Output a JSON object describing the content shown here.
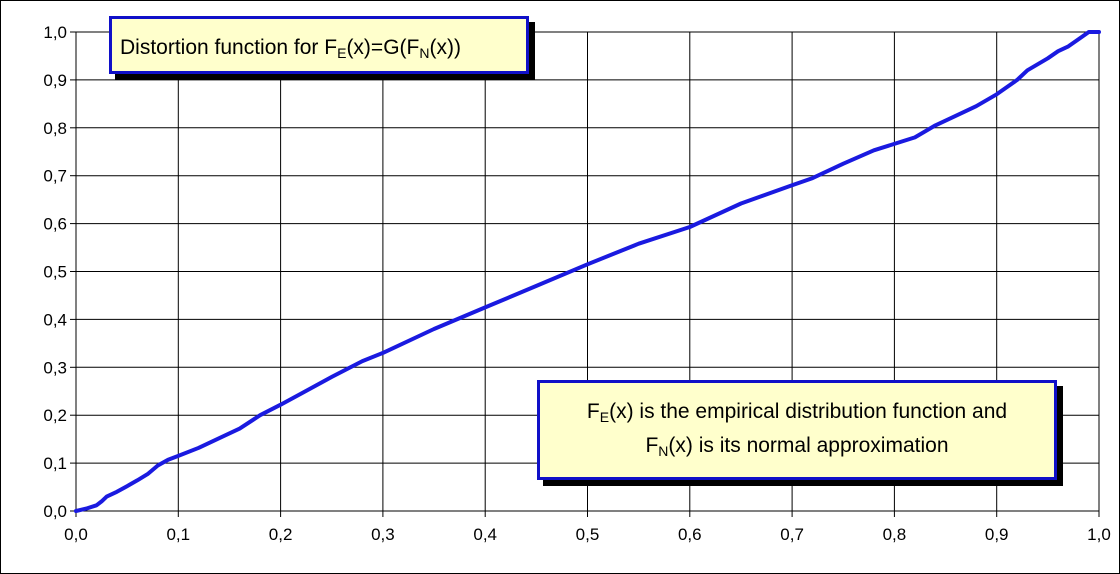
{
  "chart_data": {
    "type": "line",
    "title_parts": {
      "a": "Distortion function for F",
      "b": "E",
      "c": "(x)=G(F",
      "d": "N",
      "e": "(x))"
    },
    "annotation": {
      "line1": {
        "a": "F",
        "b": "E",
        "c": "(x) is the empirical distribution function and"
      },
      "line2": {
        "a": "F",
        "b": "N",
        "c": "(x) is its normal approximation"
      }
    },
    "xlim": [
      0,
      1
    ],
    "ylim": [
      0,
      1
    ],
    "x_ticks": [
      "0,0",
      "0,1",
      "0,2",
      "0,3",
      "0,4",
      "0,5",
      "0,6",
      "0,7",
      "0,8",
      "0,9",
      "1,0"
    ],
    "y_ticks": [
      "0,0",
      "0,1",
      "0,2",
      "0,3",
      "0,4",
      "0,5",
      "0,6",
      "0,7",
      "0,8",
      "0,9",
      "1,0"
    ],
    "grid": true,
    "series": [
      {
        "color": "#1a1ae0",
        "points": [
          [
            0.0,
            0.0
          ],
          [
            0.01,
            0.005
          ],
          [
            0.02,
            0.012
          ],
          [
            0.025,
            0.02
          ],
          [
            0.03,
            0.03
          ],
          [
            0.04,
            0.04
          ],
          [
            0.05,
            0.052
          ],
          [
            0.06,
            0.064
          ],
          [
            0.07,
            0.077
          ],
          [
            0.08,
            0.095
          ],
          [
            0.09,
            0.107
          ],
          [
            0.1,
            0.115
          ],
          [
            0.12,
            0.132
          ],
          [
            0.14,
            0.152
          ],
          [
            0.16,
            0.172
          ],
          [
            0.18,
            0.2
          ],
          [
            0.2,
            0.222
          ],
          [
            0.22,
            0.245
          ],
          [
            0.25,
            0.28
          ],
          [
            0.28,
            0.313
          ],
          [
            0.3,
            0.33
          ],
          [
            0.35,
            0.38
          ],
          [
            0.4,
            0.425
          ],
          [
            0.45,
            0.47
          ],
          [
            0.5,
            0.515
          ],
          [
            0.55,
            0.558
          ],
          [
            0.6,
            0.593
          ],
          [
            0.65,
            0.642
          ],
          [
            0.7,
            0.68
          ],
          [
            0.72,
            0.695
          ],
          [
            0.75,
            0.725
          ],
          [
            0.78,
            0.753
          ],
          [
            0.82,
            0.78
          ],
          [
            0.84,
            0.805
          ],
          [
            0.86,
            0.825
          ],
          [
            0.88,
            0.845
          ],
          [
            0.9,
            0.87
          ],
          [
            0.92,
            0.9
          ],
          [
            0.93,
            0.92
          ],
          [
            0.95,
            0.945
          ],
          [
            0.96,
            0.96
          ],
          [
            0.97,
            0.97
          ],
          [
            0.98,
            0.985
          ],
          [
            0.99,
            1.0
          ],
          [
            1.0,
            1.0
          ]
        ]
      }
    ]
  }
}
